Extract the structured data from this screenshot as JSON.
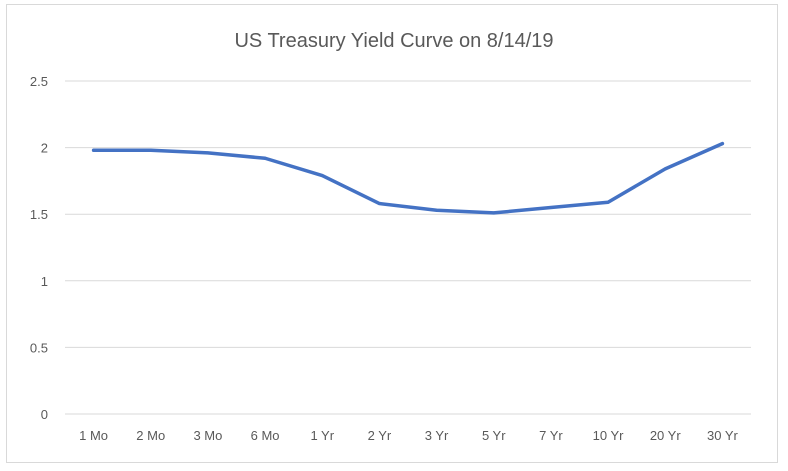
{
  "chart_data": {
    "type": "line",
    "title": "US Treasury Yield Curve on 8/14/19",
    "xlabel": "",
    "ylabel": "",
    "categories": [
      "1 Mo",
      "2 Mo",
      "3 Mo",
      "6 Mo",
      "1 Yr",
      "2 Yr",
      "3 Yr",
      "5 Yr",
      "7 Yr",
      "10 Yr",
      "20 Yr",
      "30 Yr"
    ],
    "series": [
      {
        "values": [
          1.98,
          1.98,
          1.96,
          1.92,
          1.79,
          1.58,
          1.53,
          1.51,
          1.55,
          1.59,
          1.84,
          2.03
        ]
      }
    ],
    "ylim": [
      0,
      2.5
    ],
    "yticks": [
      "0",
      "0.5",
      "1",
      "1.5",
      "2",
      "2.5"
    ],
    "grid": true,
    "legend": "none",
    "line_color": "#4472C4",
    "grid_color": "#d9d9d9"
  }
}
